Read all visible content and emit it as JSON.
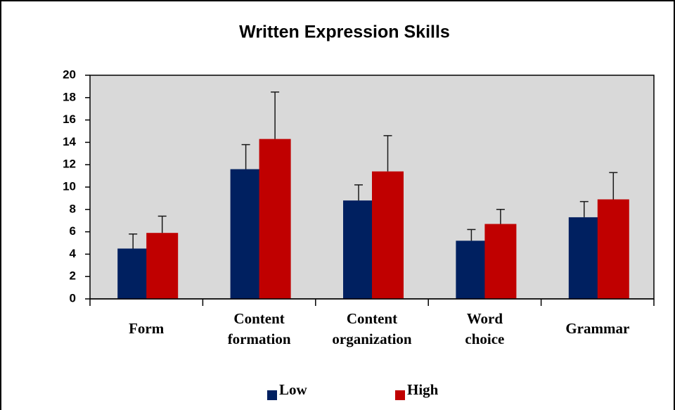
{
  "chart_data": {
    "type": "bar",
    "title": "Written Expression Skills",
    "categories": [
      "Form",
      "Content formation",
      "Content organization",
      "Word choice",
      "Grammar"
    ],
    "series": [
      {
        "name": "Low",
        "color": "#002060",
        "values": [
          4.5,
          11.6,
          8.8,
          5.2,
          7.3
        ],
        "errors": [
          1.3,
          2.2,
          1.4,
          1.0,
          1.4
        ]
      },
      {
        "name": "High",
        "color": "#c00000",
        "values": [
          5.9,
          14.3,
          11.4,
          6.7,
          8.9
        ],
        "errors": [
          1.5,
          4.2,
          3.2,
          1.3,
          2.4
        ]
      }
    ],
    "ylim": [
      0,
      20
    ],
    "yticks": [
      0,
      2,
      4,
      6,
      8,
      10,
      12,
      14,
      16,
      18,
      20
    ],
    "grid": false,
    "legend": "bottom"
  }
}
